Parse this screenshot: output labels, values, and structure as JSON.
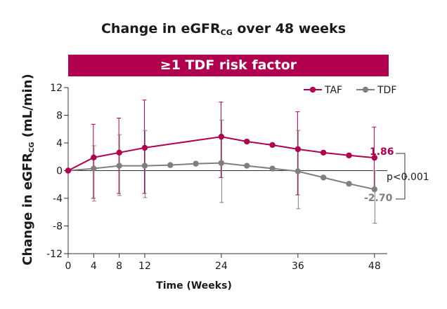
{
  "title": {
    "main": "Change in eGFR",
    "sub": "CG",
    "rest": " over 48 weeks"
  },
  "banner": "≥1 TDF risk factor",
  "colors": {
    "taf": "#b0004e",
    "tdf": "#7f7f7f",
    "banner": "#b0004e"
  },
  "chart_data": {
    "type": "line",
    "title": "Change in eGFRCG over 48 weeks",
    "xlabel": "Time (Weeks)",
    "ylabel": {
      "main": "Change in eGFR",
      "sub": "CG",
      "rest": " (mL/min)"
    },
    "xlim": [
      0,
      50
    ],
    "ylim": [
      -12,
      12
    ],
    "xticks": [
      0,
      4,
      8,
      12,
      24,
      36,
      48
    ],
    "yticks": [
      12,
      8,
      4,
      0,
      -4,
      -8,
      -12
    ],
    "legend": {
      "position": "top-right",
      "entries": [
        "TAF",
        "TDF"
      ]
    },
    "series": [
      {
        "name": "TAF",
        "color": "#b0004e",
        "x": [
          0,
          4,
          8,
          12,
          24,
          28,
          32,
          36,
          40,
          44,
          48
        ],
        "y": [
          0,
          1.9,
          2.6,
          3.3,
          4.9,
          4.2,
          3.7,
          3.1,
          2.6,
          2.2,
          1.86
        ],
        "error_bars": [
          {
            "x": 4,
            "low": -4.0,
            "high": 6.7
          },
          {
            "x": 8,
            "low": -3.3,
            "high": 7.6
          },
          {
            "x": 12,
            "low": -3.3,
            "high": 10.2
          },
          {
            "x": 24,
            "low": -1.0,
            "high": 9.9
          },
          {
            "x": 36,
            "low": -3.5,
            "high": 8.5
          },
          {
            "x": 48,
            "low": -2.8,
            "high": 6.3
          }
        ]
      },
      {
        "name": "TDF",
        "color": "#7f7f7f",
        "x": [
          0,
          4,
          8,
          12,
          16,
          20,
          24,
          28,
          32,
          36,
          40,
          44,
          48
        ],
        "y": [
          0,
          0.3,
          0.7,
          0.7,
          0.8,
          1.0,
          1.1,
          0.7,
          0.3,
          -0.1,
          -1.0,
          -1.9,
          -2.7
        ],
        "error_bars": [
          {
            "x": 4,
            "low": -4.4,
            "high": 3.6
          },
          {
            "x": 8,
            "low": -3.6,
            "high": 5.2
          },
          {
            "x": 12,
            "low": -3.9,
            "high": 5.8
          },
          {
            "x": 24,
            "low": -4.6,
            "high": 7.3
          },
          {
            "x": 36,
            "low": -5.5,
            "high": 5.8
          },
          {
            "x": 48,
            "low": -7.6,
            "high": 0.0
          }
        ]
      }
    ],
    "annotations": {
      "taf_end": "1.86",
      "tdf_end": "-2.70",
      "pvalue": "p<0.001"
    }
  }
}
